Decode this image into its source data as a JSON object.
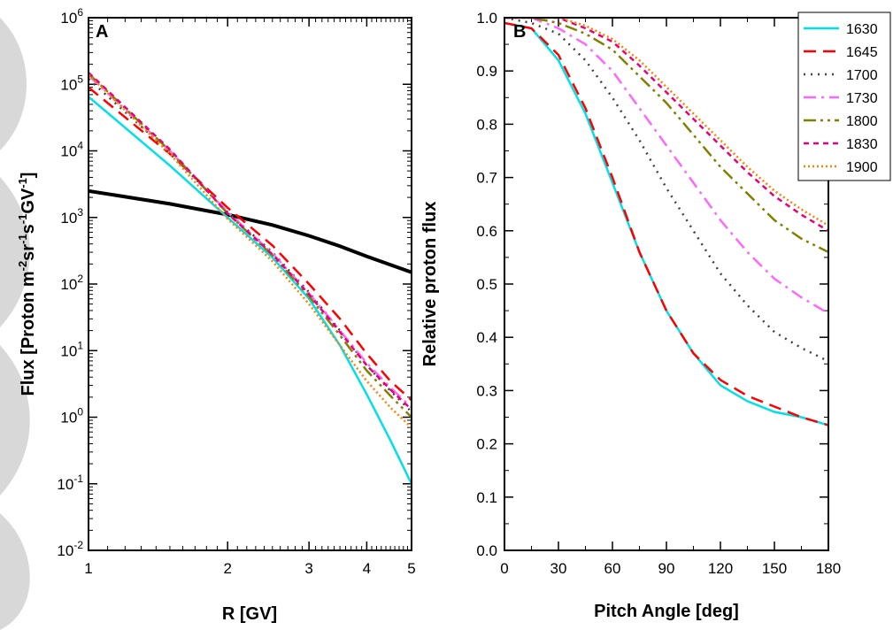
{
  "chart_data": [
    {
      "panel": "A",
      "type": "line",
      "xlabel": "R [GV]",
      "ylabel": {
        "prefix": "Flux [Proton m",
        "exp1": "-2",
        "mid1": "sr",
        "exp2": "-1",
        "mid2": "s",
        "exp3": "-1",
        "mid3": "GV",
        "exp4": "-1",
        "suffix": "]"
      },
      "x_scale": "log",
      "y_scale": "log",
      "xlim": [
        1,
        5
      ],
      "ylim": [
        0.01,
        1000000
      ],
      "x_ticks": [
        {
          "value": 1,
          "label": "1"
        },
        {
          "value": 2,
          "label": "2"
        },
        {
          "value": 3,
          "label": "3"
        },
        {
          "value": 4,
          "label": "4"
        },
        {
          "value": 5,
          "label": "5"
        }
      ],
      "y_ticks": [
        {
          "value": 0.01,
          "base": "10",
          "exp": "-2"
        },
        {
          "value": 0.1,
          "base": "10",
          "exp": "-1"
        },
        {
          "value": 1,
          "base": "10",
          "exp": "0"
        },
        {
          "value": 10,
          "base": "10",
          "exp": "1"
        },
        {
          "value": 100,
          "base": "10",
          "exp": "2"
        },
        {
          "value": 1000,
          "base": "10",
          "exp": "3"
        },
        {
          "value": 10000,
          "base": "10",
          "exp": "4"
        },
        {
          "value": 100000,
          "base": "10",
          "exp": "5"
        },
        {
          "value": 1000000,
          "base": "10",
          "exp": "6"
        }
      ],
      "series": [
        {
          "color": "#000000",
          "dash": "solid",
          "width": 4,
          "x": [
            1,
            1.5,
            2,
            2.5,
            3,
            3.5,
            4,
            4.5,
            5
          ],
          "y": [
            2500,
            1600,
            1100,
            770,
            530,
            370,
            260,
            195,
            150
          ]
        },
        {
          "name": "1630",
          "color": "#00e0e8",
          "dash": "solid",
          "width": 2.5,
          "x": [
            1,
            1.5,
            2,
            2.5,
            3,
            3.5,
            4,
            4.5,
            5
          ],
          "y": [
            65000,
            6000,
            1000,
            250,
            60,
            12,
            2.2,
            0.45,
            0.1
          ]
        },
        {
          "name": "1645",
          "color": "#ff0000",
          "dash": "dashed",
          "width": 2.5,
          "x": [
            1,
            1.5,
            2,
            2.5,
            3,
            3.5,
            4,
            4.5,
            5
          ],
          "y": [
            90000,
            9000,
            1400,
            380,
            100,
            30,
            9,
            3.5,
            1.8
          ]
        },
        {
          "name": "1700",
          "color": "#404040",
          "dash": "dotted",
          "width": 2.5,
          "x": [
            1,
            1.5,
            2,
            2.5,
            3,
            3.5,
            4,
            4.5,
            5
          ],
          "y": [
            120000,
            9500,
            1200,
            300,
            75,
            20,
            6,
            2.5,
            1.2
          ]
        },
        {
          "name": "1730",
          "color": "#ff66ff",
          "dash": "dashdot",
          "width": 2.5,
          "x": [
            1,
            1.5,
            2,
            2.5,
            3,
            3.5,
            4,
            4.5,
            5
          ],
          "y": [
            135000,
            10000,
            1200,
            290,
            72,
            20,
            6.5,
            2.8,
            1.4
          ]
        },
        {
          "name": "1800",
          "color": "#808000",
          "dash": "dashdotdot",
          "width": 2.5,
          "x": [
            1,
            1.5,
            2,
            2.5,
            3,
            3.5,
            4,
            4.5,
            5
          ],
          "y": [
            145000,
            10000,
            1150,
            270,
            65,
            17,
            5,
            2.1,
            1.0
          ]
        },
        {
          "name": "1830",
          "color": "#e8007a",
          "dash": "shortdash",
          "width": 2.5,
          "x": [
            1,
            1.5,
            2,
            2.5,
            3,
            3.5,
            4,
            4.5,
            5
          ],
          "y": [
            150000,
            10500,
            1150,
            280,
            70,
            19,
            6,
            2.6,
            1.3
          ]
        },
        {
          "name": "1900",
          "color": "#ff7f00",
          "dash": "shortdot",
          "width": 2.5,
          "x": [
            1,
            1.5,
            2,
            2.5,
            3,
            3.5,
            4,
            4.5,
            5
          ],
          "y": [
            140000,
            9000,
            950,
            220,
            50,
            12,
            3.5,
            1.4,
            0.7
          ]
        }
      ]
    },
    {
      "panel": "B",
      "type": "line",
      "xlabel": "Pitch Angle [deg]",
      "ylabel": "Relative proton flux",
      "xlim": [
        0,
        180
      ],
      "ylim": [
        0,
        1.0
      ],
      "x_ticks": [
        0,
        30,
        60,
        90,
        120,
        150,
        180
      ],
      "y_ticks": [
        "0.0",
        "0.1",
        "0.2",
        "0.3",
        "0.4",
        "0.5",
        "0.6",
        "0.7",
        "0.8",
        "0.9",
        "1.0"
      ],
      "legend_position": "top-right",
      "series": [
        {
          "name": "1630",
          "color": "#00e0e8",
          "dash": "solid",
          "width": 2.5,
          "x": [
            0,
            15,
            30,
            45,
            60,
            75,
            90,
            105,
            120,
            135,
            150,
            165,
            180
          ],
          "y": [
            0.99,
            0.98,
            0.92,
            0.82,
            0.69,
            0.56,
            0.45,
            0.37,
            0.31,
            0.28,
            0.26,
            0.25,
            0.235
          ]
        },
        {
          "name": "1645",
          "color": "#ff0000",
          "dash": "dashed",
          "width": 2.5,
          "x": [
            0,
            15,
            30,
            45,
            60,
            75,
            90,
            105,
            120,
            135,
            150,
            165,
            180
          ],
          "y": [
            0.99,
            0.98,
            0.93,
            0.83,
            0.7,
            0.56,
            0.45,
            0.37,
            0.32,
            0.29,
            0.27,
            0.25,
            0.235
          ]
        },
        {
          "name": "1700",
          "color": "#404040",
          "dash": "dotted",
          "width": 2.5,
          "x": [
            0,
            15,
            30,
            45,
            60,
            75,
            90,
            105,
            120,
            135,
            150,
            165,
            180
          ],
          "y": [
            1.0,
            0.99,
            0.97,
            0.92,
            0.85,
            0.77,
            0.68,
            0.6,
            0.52,
            0.46,
            0.41,
            0.38,
            0.355
          ]
        },
        {
          "name": "1730",
          "color": "#ff66ff",
          "dash": "dashdot",
          "width": 2.5,
          "x": [
            0,
            15,
            30,
            45,
            60,
            75,
            90,
            105,
            120,
            135,
            150,
            165,
            180
          ],
          "y": [
            1.0,
            1.0,
            0.98,
            0.95,
            0.9,
            0.83,
            0.76,
            0.69,
            0.62,
            0.56,
            0.51,
            0.475,
            0.445
          ]
        },
        {
          "name": "1800",
          "color": "#808000",
          "dash": "dashdotdot",
          "width": 2.5,
          "x": [
            0,
            15,
            30,
            45,
            60,
            75,
            90,
            105,
            120,
            135,
            150,
            165,
            180
          ],
          "y": [
            1.0,
            1.0,
            0.99,
            0.97,
            0.94,
            0.89,
            0.84,
            0.78,
            0.72,
            0.67,
            0.62,
            0.585,
            0.56
          ]
        },
        {
          "name": "1830",
          "color": "#e8007a",
          "dash": "shortdash",
          "width": 2.5,
          "x": [
            0,
            15,
            30,
            45,
            60,
            75,
            90,
            105,
            120,
            135,
            150,
            165,
            180
          ],
          "y": [
            1.0,
            1.0,
            1.0,
            0.98,
            0.955,
            0.91,
            0.86,
            0.81,
            0.76,
            0.71,
            0.665,
            0.63,
            0.6
          ]
        },
        {
          "name": "1900",
          "color": "#ff7f00",
          "dash": "shortdot",
          "width": 2.5,
          "x": [
            0,
            15,
            30,
            45,
            60,
            75,
            90,
            105,
            120,
            135,
            150,
            165,
            180
          ],
          "y": [
            1.0,
            1.0,
            1.0,
            0.985,
            0.96,
            0.92,
            0.87,
            0.82,
            0.77,
            0.72,
            0.675,
            0.64,
            0.61
          ]
        }
      ]
    }
  ]
}
